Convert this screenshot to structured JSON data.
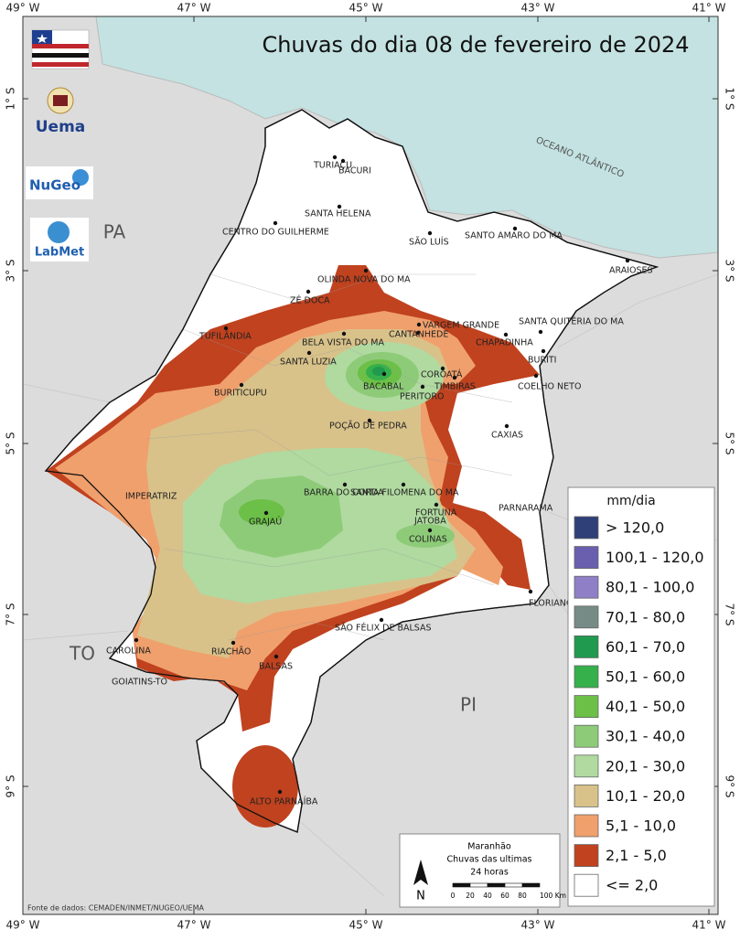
{
  "header": {
    "title": "Chuvas do dia 08 de fevereiro de 2024"
  },
  "graticule": {
    "longitudes": [
      "49° W",
      "47° W",
      "45° W",
      "43° W",
      "41° W"
    ],
    "latitudes": [
      "1° S",
      "3° S",
      "5° S",
      "7° S",
      "9° S"
    ]
  },
  "logos": [
    "Uema",
    "NuGeo",
    "LabMet"
  ],
  "regions": [
    "PA",
    "TO",
    "PI",
    "OCEANO ATLÂNTICO"
  ],
  "cities": [
    "TURIAÇU",
    "BACURI",
    "SANTA HELENA",
    "CENTRO DO GUILHERME",
    "SÃO LUÍS",
    "SANTO AMARO DO MA",
    "ARAIOSES",
    "OLINDA NOVA DO MA",
    "ZÉ DOCA",
    "VARGEM GRANDE",
    "SANTA QUITÉRIA DO MA",
    "CANTANHEDE",
    "TUFILÂNDIA",
    "BELA VISTA DO MA",
    "CHAPADINHA",
    "SANTA LUZIA",
    "BURITI",
    "BACABAL",
    "COROATÁ",
    "TIMBIRAS",
    "COELHO NETO",
    "BURITICUPU",
    "PERITORO",
    "POÇÃO DE PEDRA",
    "CAXIAS",
    "BARRA DO CORDA",
    "SANTA FILOMENA DO MA",
    "IMPERATRIZ",
    "FORTUNA",
    "PARNARAMA",
    "JATOBÁ",
    "GRAJAÚ",
    "COLINAS",
    "FLORIANO-PI",
    "SÃO FÉLIX DE BALSAS",
    "CAROLINA",
    "RIACHÃO",
    "BALSAS",
    "GOIATINS-TO",
    "ALTO PARNAÍBA"
  ],
  "legend": {
    "title": "mm/dia",
    "items": [
      {
        "label": "> 120,0",
        "color": "#2f3f78"
      },
      {
        "label": "100,1 - 120,0",
        "color": "#6a5eae"
      },
      {
        "label": "80,1 - 100,0",
        "color": "#8f7fc6"
      },
      {
        "label": "70,1 - 80,0",
        "color": "#768b85"
      },
      {
        "label": "60,1 - 70,0",
        "color": "#1f9a4e"
      },
      {
        "label": "50,1 - 60,0",
        "color": "#35b04a"
      },
      {
        "label": "40,1 - 50,0",
        "color": "#6cbf47"
      },
      {
        "label": "30,1 - 40,0",
        "color": "#8dcb78"
      },
      {
        "label": "20,1 - 30,0",
        "color": "#b0daa0"
      },
      {
        "label": "10,1 - 20,0",
        "color": "#d8c28a"
      },
      {
        "label": "5,1 - 10,0",
        "color": "#f0a06c"
      },
      {
        "label": "2,1 - 5,0",
        "color": "#c0421f"
      },
      {
        "label": "<= 2,0",
        "color": "#ffffff"
      }
    ]
  },
  "scale_box": {
    "lines": [
      "Maranhão",
      "Chuvas das ultimas",
      "24 horas"
    ],
    "north": "N",
    "scale_labels": [
      "0",
      "20",
      "40",
      "60",
      "80",
      "100 Km"
    ]
  },
  "source": "Fonte de dados: CEMADEN/INMET/NUGEO/UEMA"
}
